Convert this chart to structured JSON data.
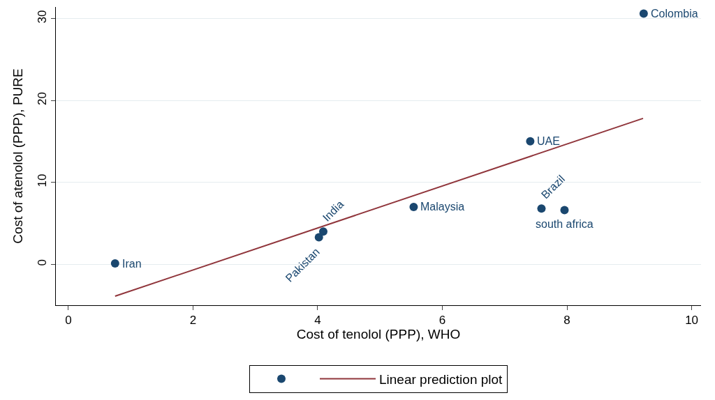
{
  "chart_data": {
    "type": "scatter",
    "xlabel": "Cost of tenolol (PPP), WHO",
    "ylabel": "Cost of atenolol (PPP), PURE",
    "series": [
      {
        "marker": "circle",
        "color": "#1a476f",
        "x": [
          0.75,
          4.02,
          4.09,
          5.54,
          7.59,
          7.96,
          7.41,
          9.23
        ],
        "values": [
          0.1,
          3.3,
          4.0,
          7.0,
          6.8,
          6.6,
          15.0,
          30.6
        ]
      },
      {
        "type": "line",
        "name": "Linear prediction plot",
        "color": "#90353b",
        "x": [
          0.75,
          9.22
        ],
        "values": [
          -3.9,
          17.8
        ]
      }
    ],
    "annotations": [
      {
        "text": "Iran",
        "x": 0.75,
        "y": 0.1
      },
      {
        "text": "Pakistan",
        "x": 4.02,
        "y": 3.3
      },
      {
        "text": "India",
        "x": 4.09,
        "y": 4.0
      },
      {
        "text": "Malaysia",
        "x": 5.54,
        "y": 7.0
      },
      {
        "text": "Brazil",
        "x": 7.59,
        "y": 6.8
      },
      {
        "text": "south africa",
        "x": 7.96,
        "y": 6.6
      },
      {
        "text": "UAE",
        "x": 7.41,
        "y": 15.0
      },
      {
        "text": "Colombia",
        "x": 9.23,
        "y": 30.6
      }
    ],
    "xlim": [
      -0.2,
      10.15
    ],
    "xticks": [
      0,
      2,
      4,
      6,
      8,
      10
    ],
    "ylim": [
      -5,
      31.4
    ],
    "yticks": [
      0,
      10,
      20,
      30
    ],
    "grid": "y",
    "legend": "bottom",
    "line_style": "solid"
  }
}
